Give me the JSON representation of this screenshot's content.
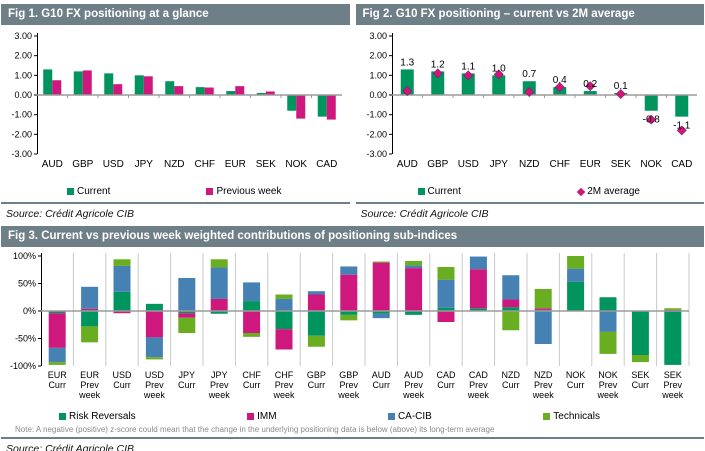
{
  "colors": {
    "header_bg": "#6e7f88",
    "current_green": "#00945e",
    "magenta": "#ce187e",
    "ca_cib_blue": "#4581b2",
    "technicals_green": "#69ad20",
    "zero_line": "#9c9c9c",
    "grid_line": "#c9c9c9"
  },
  "panels": {
    "fig1": {
      "title": "Fig 1. G10 FX positioning at a glance",
      "source": "Source: Crédit Agricole CIB"
    },
    "fig2": {
      "title": "Fig 2. G10 FX positioning – current vs 2M average",
      "source": "Source: Crédit Agricole CIB"
    },
    "fig3": {
      "title": "Fig 3. Current vs previous week weighted contributions of positioning sub-indices",
      "note": "Note:  A negative (positive) z-score could mean that the change in the underlying positioning data is below (above) its long-term average",
      "source": "Source: Crédit Agricole CIB"
    }
  },
  "chart_data": [
    {
      "id": "fig1",
      "type": "bar",
      "title": "Fig 1. G10 FX positioning at a glance",
      "categories": [
        "AUD",
        "GBP",
        "USD",
        "JPY",
        "NZD",
        "CHF",
        "EUR",
        "SEK",
        "NOK",
        "CAD"
      ],
      "series": [
        {
          "name": "Current",
          "marker": "square",
          "color": "#00945e",
          "values": [
            1.3,
            1.2,
            1.1,
            1.0,
            0.7,
            0.4,
            0.2,
            0.1,
            -0.8,
            -1.1
          ]
        },
        {
          "name": "Previous week",
          "marker": "square",
          "color": "#ce187e",
          "values": [
            0.75,
            1.25,
            0.55,
            0.95,
            0.45,
            0.38,
            0.45,
            0.18,
            -1.2,
            -1.25
          ]
        }
      ],
      "ylim": [
        -3,
        3
      ],
      "yticks": [
        "3.00",
        "2.00",
        "1.00",
        "0.00",
        "-1.00",
        "-2.00",
        "-3.00"
      ],
      "grid": false,
      "legend_position": "bottom"
    },
    {
      "id": "fig2",
      "type": "bar+scatter",
      "title": "Fig 2. G10 FX positioning – current vs 2M average",
      "categories": [
        "AUD",
        "GBP",
        "USD",
        "JPY",
        "NZD",
        "CHF",
        "EUR",
        "SEK",
        "NOK",
        "CAD"
      ],
      "series": [
        {
          "name": "Current",
          "type": "bar",
          "marker": "square",
          "color": "#00945e",
          "values": [
            1.3,
            1.2,
            1.1,
            1.0,
            0.7,
            0.4,
            0.2,
            0.1,
            -0.8,
            -1.1
          ],
          "labels": [
            "1.3",
            "1.2",
            "1.1",
            "1.0",
            "0.7",
            "0.4",
            "0.2",
            "0.1",
            "-0.8",
            "-1.1"
          ]
        },
        {
          "name": "2M average",
          "type": "scatter",
          "marker": "diamond",
          "color": "#ce187e",
          "values": [
            0.2,
            1.1,
            1.0,
            1.05,
            0.15,
            0.4,
            0.45,
            0.05,
            -1.25,
            -1.8
          ]
        }
      ],
      "ylim": [
        -3,
        3
      ],
      "yticks": [
        "3.00",
        "2.00",
        "1.00",
        "0.00",
        "-1.00",
        "-2.00",
        "-3.00"
      ],
      "grid": false,
      "legend_position": "bottom"
    },
    {
      "id": "fig3",
      "type": "stacked-bar",
      "title": "Fig 3. Current vs previous week weighted contributions of positioning sub-indices",
      "categories": [
        "EUR Curr",
        "EUR Prev week",
        "USD Curr",
        "USD Prev week",
        "JPY Curr",
        "JPY Prev week",
        "CHF Curr",
        "CHF Prev week",
        "GBP Curr",
        "GBP Prev week",
        "AUD Curr",
        "AUD Prev week",
        "CAD Curr",
        "CAD Prev week",
        "NZD Curr",
        "NZD Prev week",
        "NOK Curr",
        "NOK Prev week",
        "SEK Curr",
        "SEK Prev week"
      ],
      "series": [
        {
          "name": "Risk Reversals",
          "marker": "square",
          "color": "#00945e",
          "values": [
            -4,
            -28,
            35,
            13,
            -4,
            -5,
            18,
            -33,
            -45,
            -7,
            -5,
            -7,
            6,
            5,
            7,
            2,
            53,
            25,
            -80,
            -98
          ]
        },
        {
          "name": "IMM",
          "marker": "square",
          "color": "#ce187e",
          "values": [
            -63,
            4,
            -4,
            -48,
            -8,
            22,
            -40,
            -37,
            30,
            66,
            88,
            78,
            -20,
            71,
            14,
            3,
            0,
            0,
            0,
            2
          ]
        },
        {
          "name": "CA-CIB",
          "marker": "square",
          "color": "#4581b2",
          "values": [
            -26,
            40,
            47,
            -36,
            60,
            57,
            34,
            22,
            6,
            15,
            -8,
            5,
            51,
            23,
            44,
            -60,
            24,
            -38,
            0,
            0
          ]
        },
        {
          "name": "Technicals",
          "marker": "square",
          "color": "#69ad20",
          "values": [
            -5,
            -29,
            12,
            -4,
            -28,
            15,
            -7,
            8,
            -20,
            -10,
            2,
            8,
            23,
            0,
            -35,
            35,
            23,
            -40,
            -13,
            3
          ]
        }
      ],
      "ylim": [
        -100,
        100
      ],
      "yticks": [
        "100%",
        "50%",
        "0%",
        "-50%",
        "-100%"
      ],
      "grid": "vertical-category-lines",
      "legend_position": "bottom",
      "unit": "%"
    }
  ]
}
